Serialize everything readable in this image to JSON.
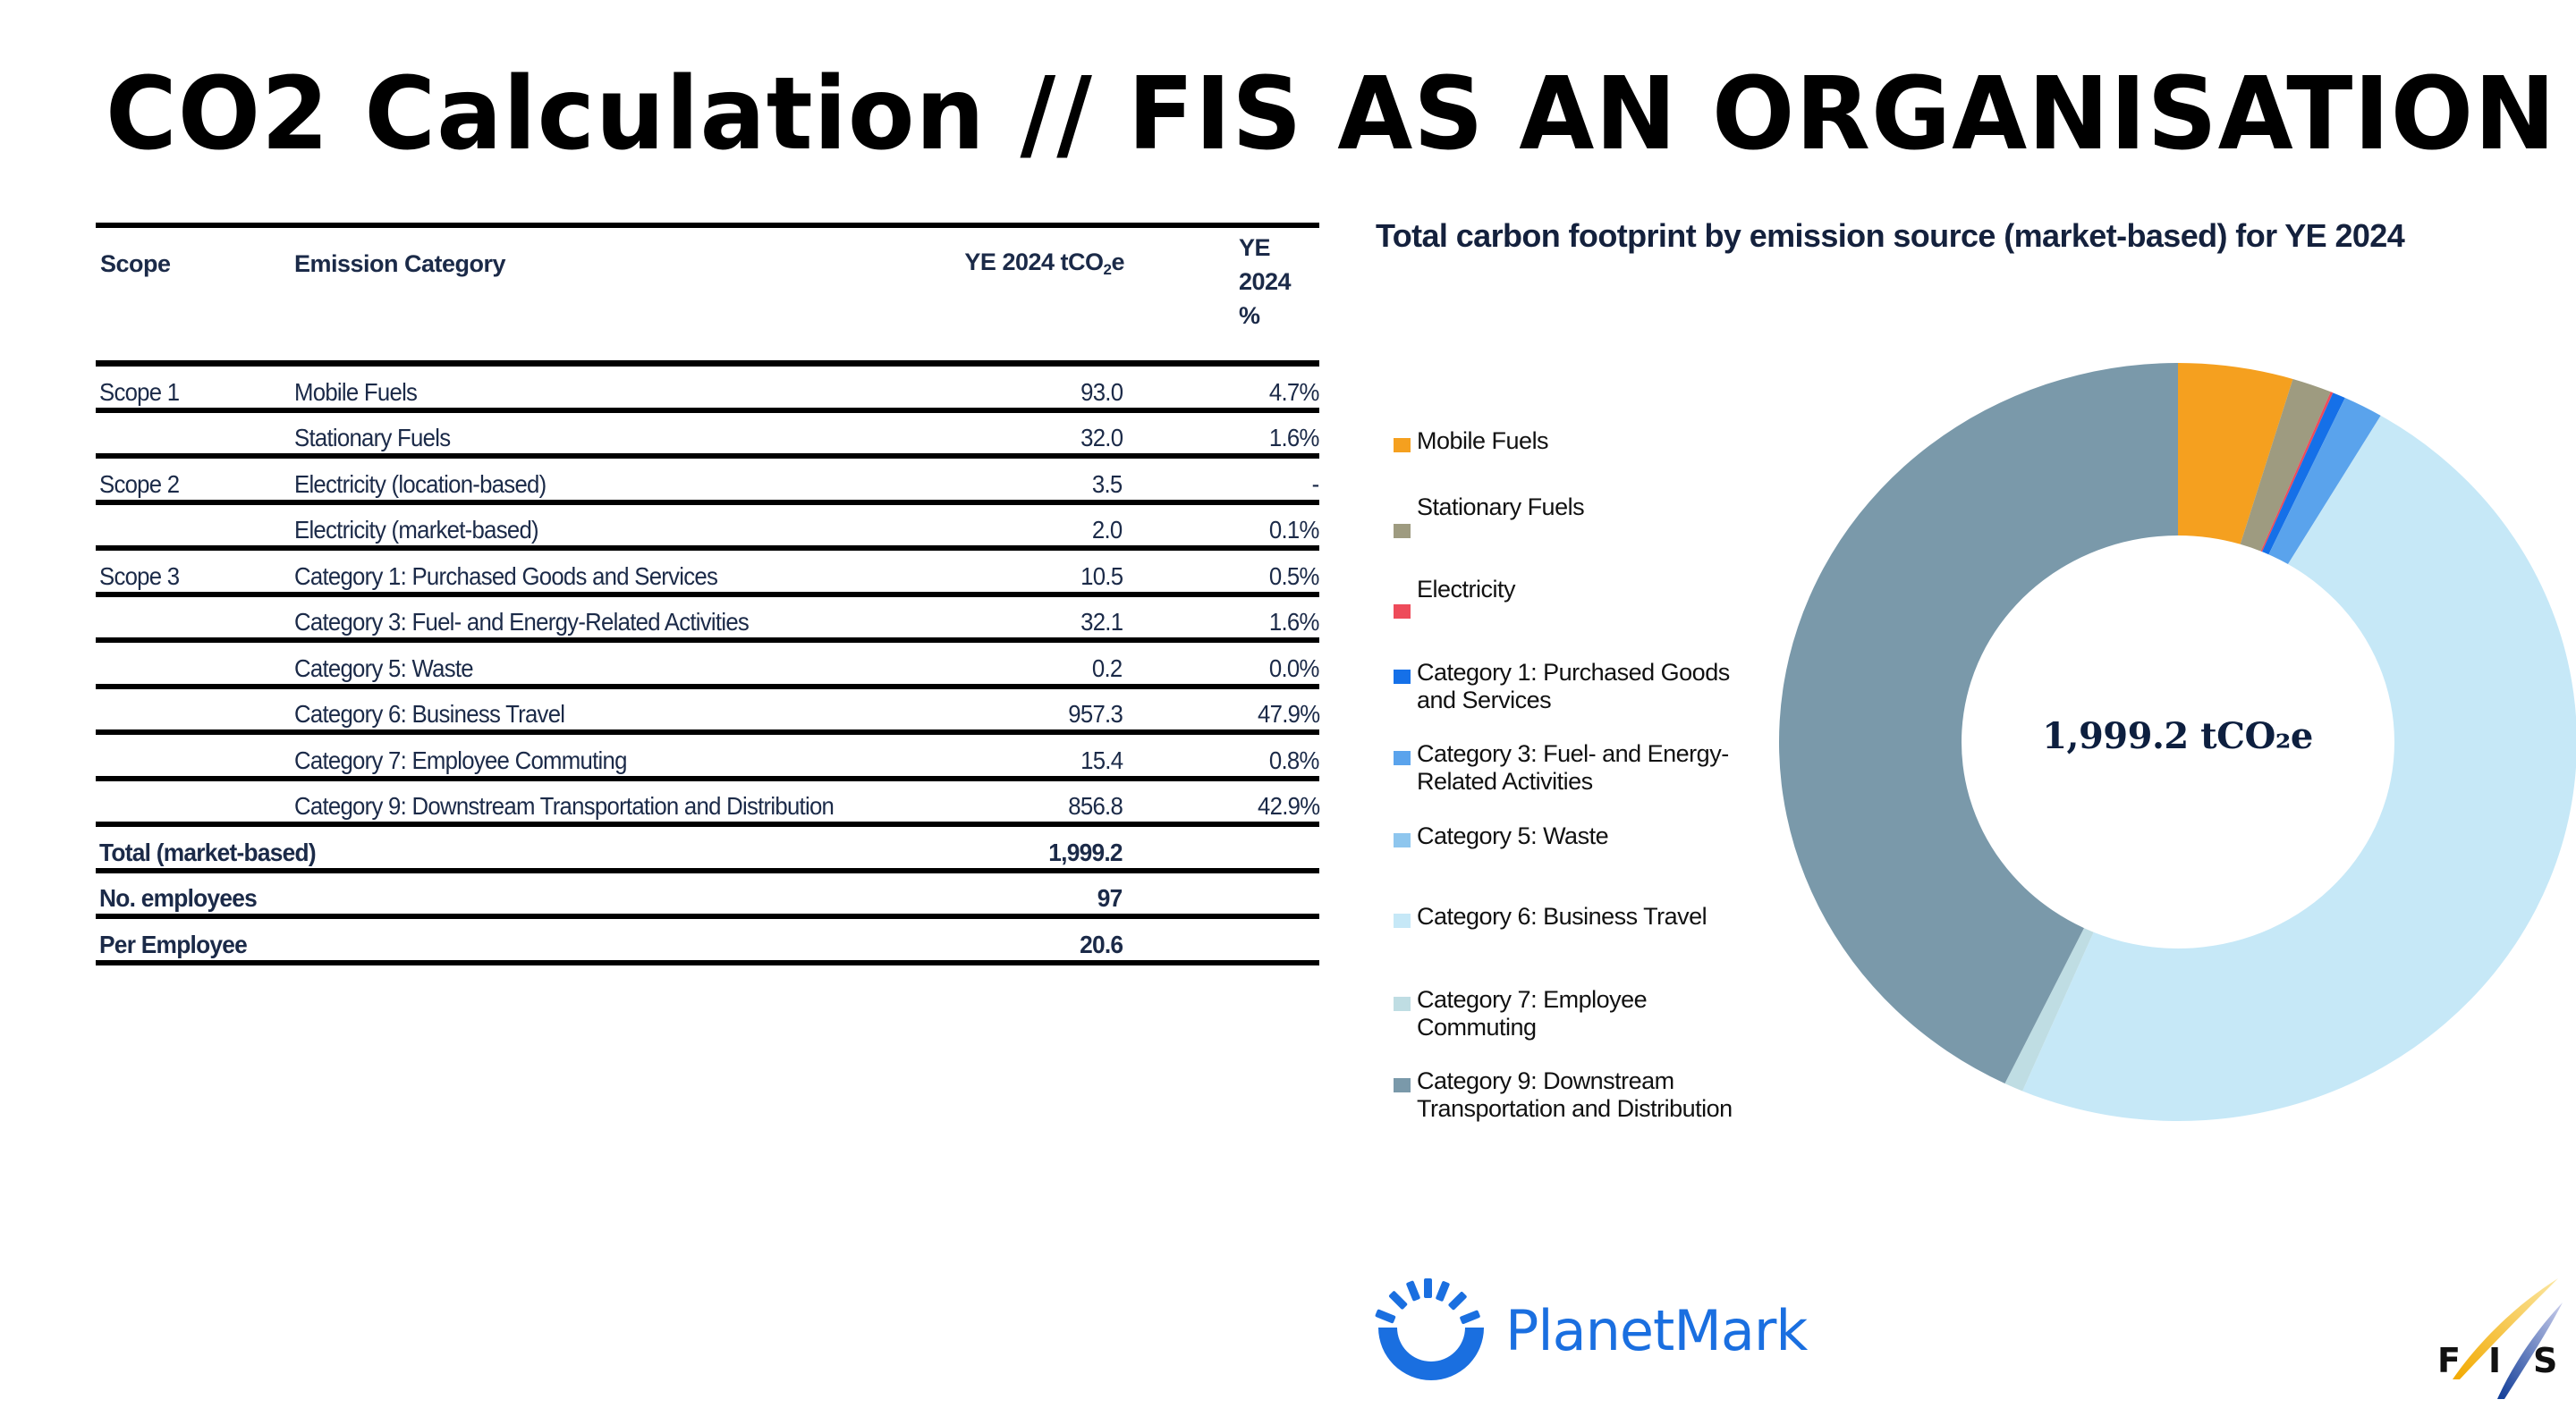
{
  "slide": {
    "title": "CO2 Calculation // FIS AS AN ORGANISATION"
  },
  "table": {
    "headers": {
      "scope": "Scope",
      "category": "Emission Category",
      "value": "YE 2024 tCO",
      "value_sub": "2",
      "value_suffix": "e",
      "percent": "YE\n2024\n%"
    },
    "rows": [
      {
        "scope": "Scope 1",
        "category": "Mobile Fuels",
        "value": "93.0",
        "percent": "4.7%"
      },
      {
        "scope": "",
        "category": "Stationary Fuels",
        "value": "32.0",
        "percent": "1.6%"
      },
      {
        "scope": "Scope 2",
        "category": "Electricity  (location-based)",
        "value": "3.5",
        "percent": "-"
      },
      {
        "scope": "",
        "category": "Electricity  (market-based)",
        "value": "2.0",
        "percent": "0.1%"
      },
      {
        "scope": "Scope 3",
        "category": "Category 1: Purchased Goods and Services",
        "value": "10.5",
        "percent": "0.5%"
      },
      {
        "scope": "",
        "category": "Category 3: Fuel- and Energy-Related Activities",
        "value": "32.1",
        "percent": "1.6%"
      },
      {
        "scope": "",
        "category": "Category 5: Waste",
        "value": "0.2",
        "percent": "0.0%"
      },
      {
        "scope": "",
        "category": "Category 6: Business Travel",
        "value": "957.3",
        "percent": "47.9%"
      },
      {
        "scope": "",
        "category": "Category 7: Employee Commuting",
        "value": "15.4",
        "percent": "0.8%"
      },
      {
        "scope": "",
        "category": "Category 9: Downstream Transportation and Distribution",
        "value": "856.8",
        "percent": "42.9%"
      }
    ],
    "summary": [
      {
        "label": "Total (market-based)",
        "value": "1,999.2"
      },
      {
        "label": "No. employees",
        "value": "97"
      },
      {
        "label": "Per Employee",
        "value": "20.6"
      }
    ]
  },
  "chart": {
    "title": "Total carbon footprint by emission source (market-based) for YE 2024",
    "center_label": "1,999.2 tCO₂e"
  },
  "chart_data": {
    "type": "pie",
    "subtype": "donut",
    "title": "Total carbon footprint by emission source (market-based) for YE 2024",
    "center_text": "1,999.2 tCO2e",
    "unit": "tCO2e",
    "legend_position": "left",
    "categories": [
      "Mobile  Fuels",
      "Stationary Fuels",
      "Electricity",
      "Category 1: Purchased Goods and Services",
      "Category 3: Fuel- and Energy-Related Activities",
      "Category 5: Waste",
      "Category 6: Business Travel",
      "Category 7: Employee Commuting",
      "Category 9: Downstream Transportation and Distribution"
    ],
    "values": [
      93.0,
      32.0,
      2.0,
      10.5,
      32.1,
      0.2,
      957.3,
      15.4,
      856.8
    ],
    "colors": [
      "#F5A01F",
      "#9E9B80",
      "#EE4B5A",
      "#1570E8",
      "#5AA3EC",
      "#8EC6EE",
      "#C6E8F7",
      "#BFDDE3",
      "#7A99AA"
    ],
    "legend_labels": [
      "Mobile  Fuels",
      "Stationary Fuels",
      "Electricity",
      "Category 1: Purchased Goods\nand Services",
      "Category 3: Fuel- and Energy-\nRelated Activities",
      "Category 5: Waste",
      "Category 6: Business Travel",
      "Category 7: Employee\nCommuting",
      "Category 9: Downstream\nTransportation and Distribution"
    ]
  },
  "logos": {
    "planetmark": "PlanetMark",
    "fis": "FIS"
  }
}
